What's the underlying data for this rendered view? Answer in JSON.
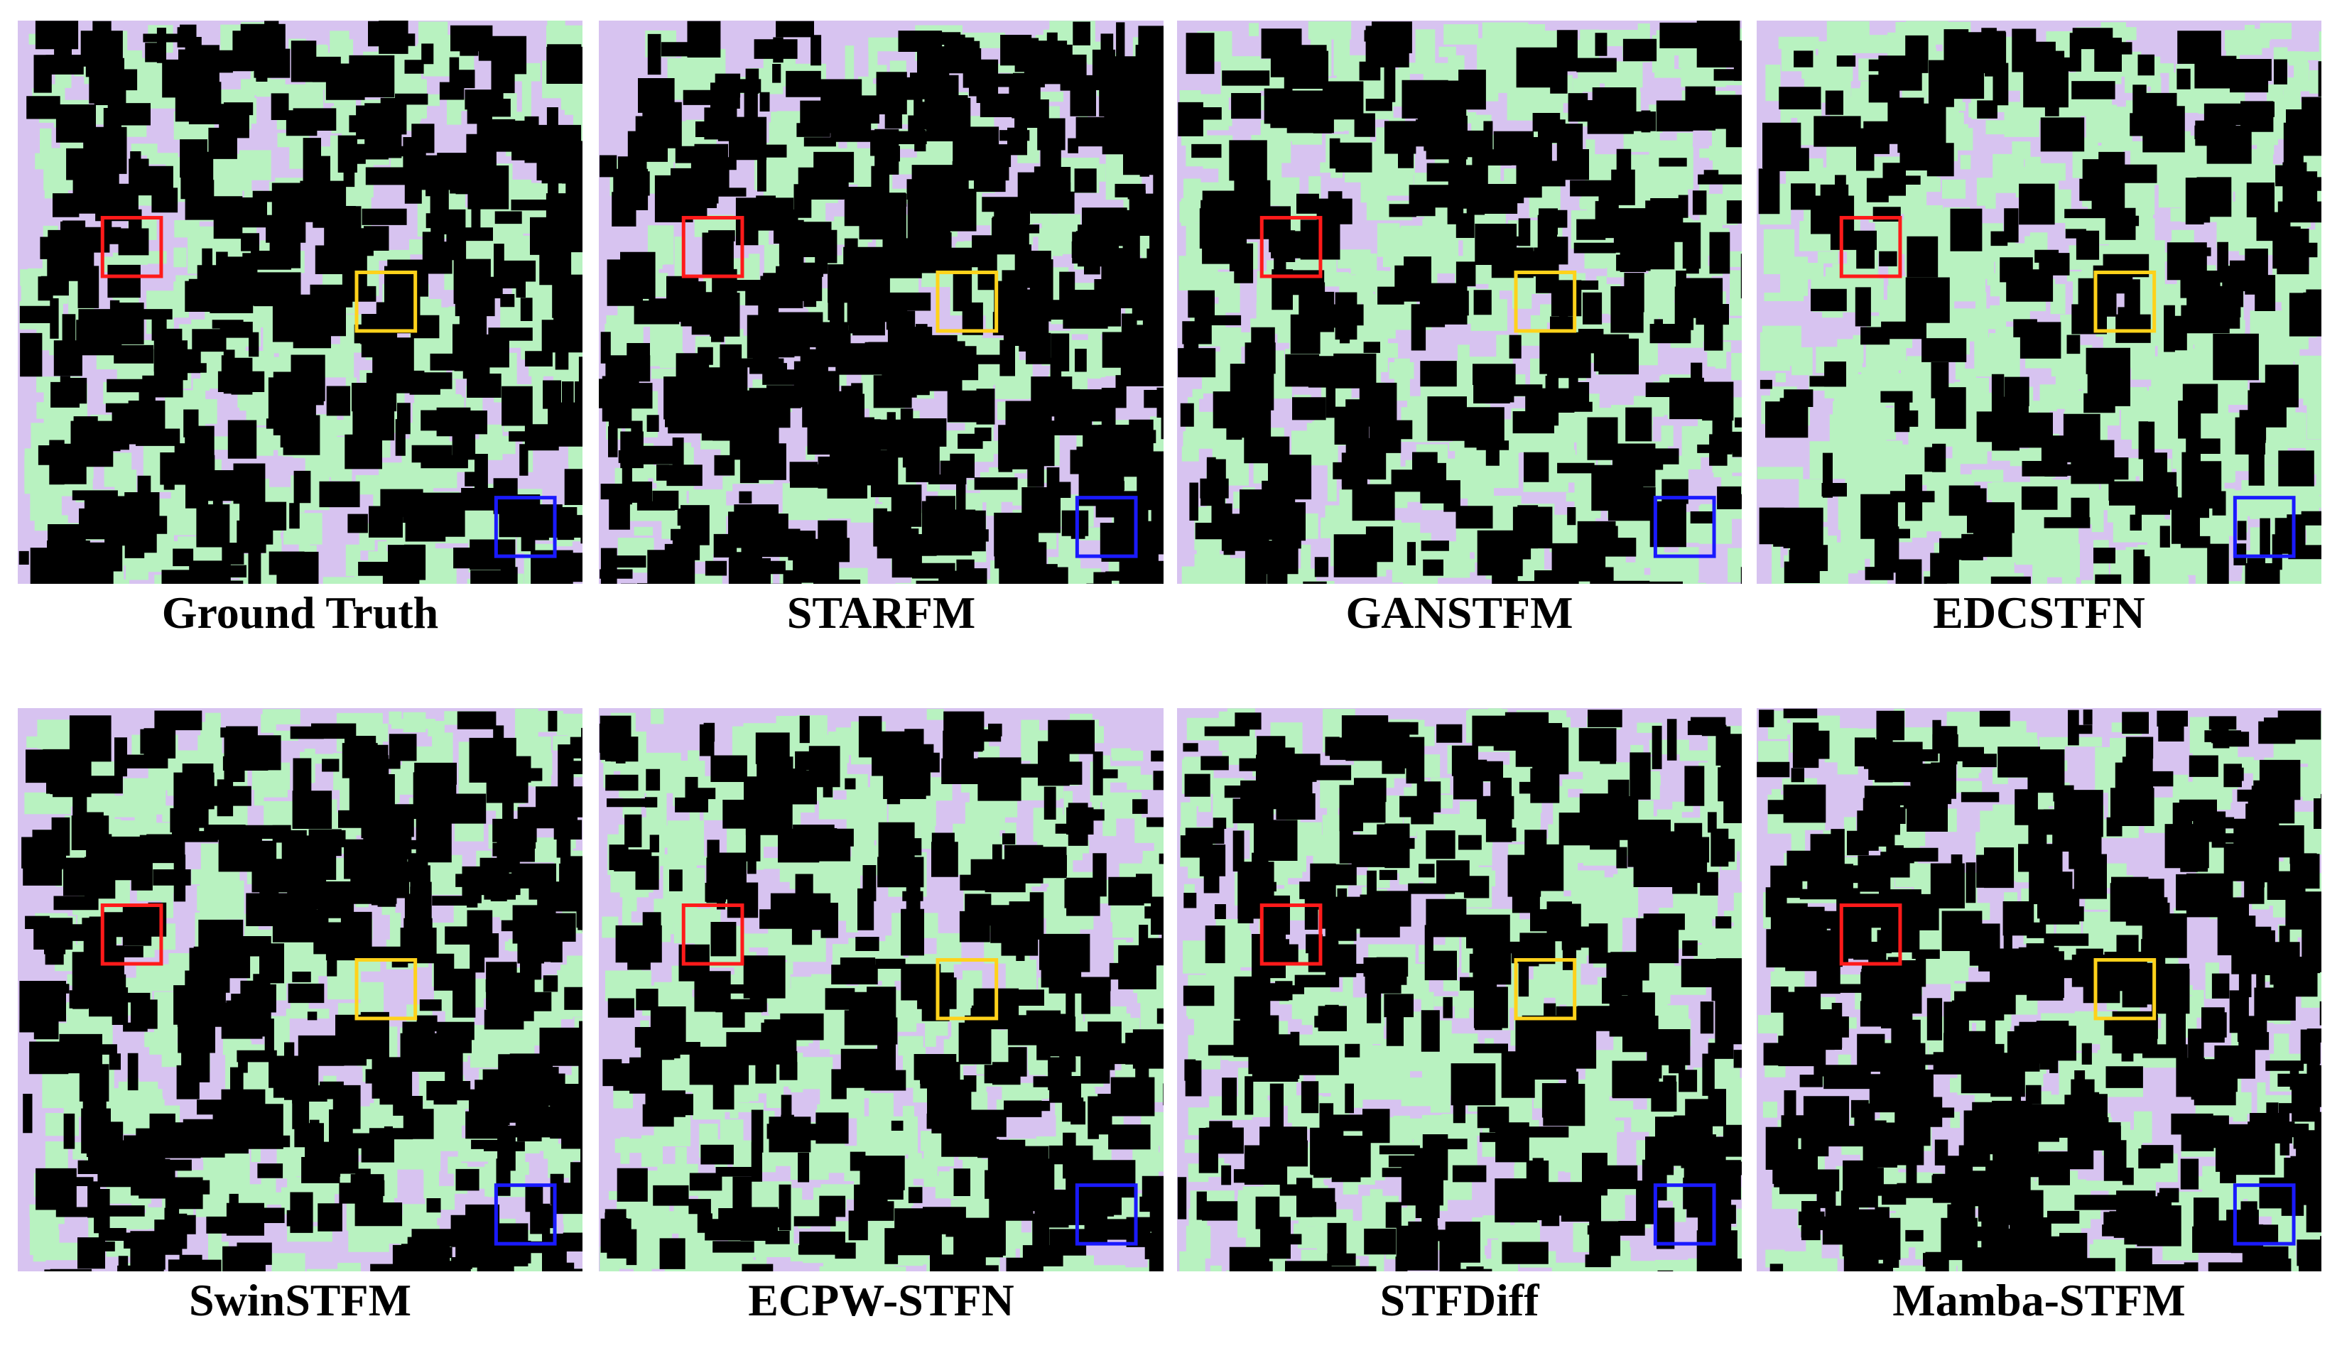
{
  "figure": {
    "panels": [
      {
        "label": "Ground Truth"
      },
      {
        "label": "STARFM"
      },
      {
        "label": "GANSTFM"
      },
      {
        "label": "EDCSTFN"
      },
      {
        "label": "SwinSTFM"
      },
      {
        "label": "ECPW-STFN"
      },
      {
        "label": "STFDiff"
      },
      {
        "label": "Mamba-STFM"
      }
    ]
  }
}
